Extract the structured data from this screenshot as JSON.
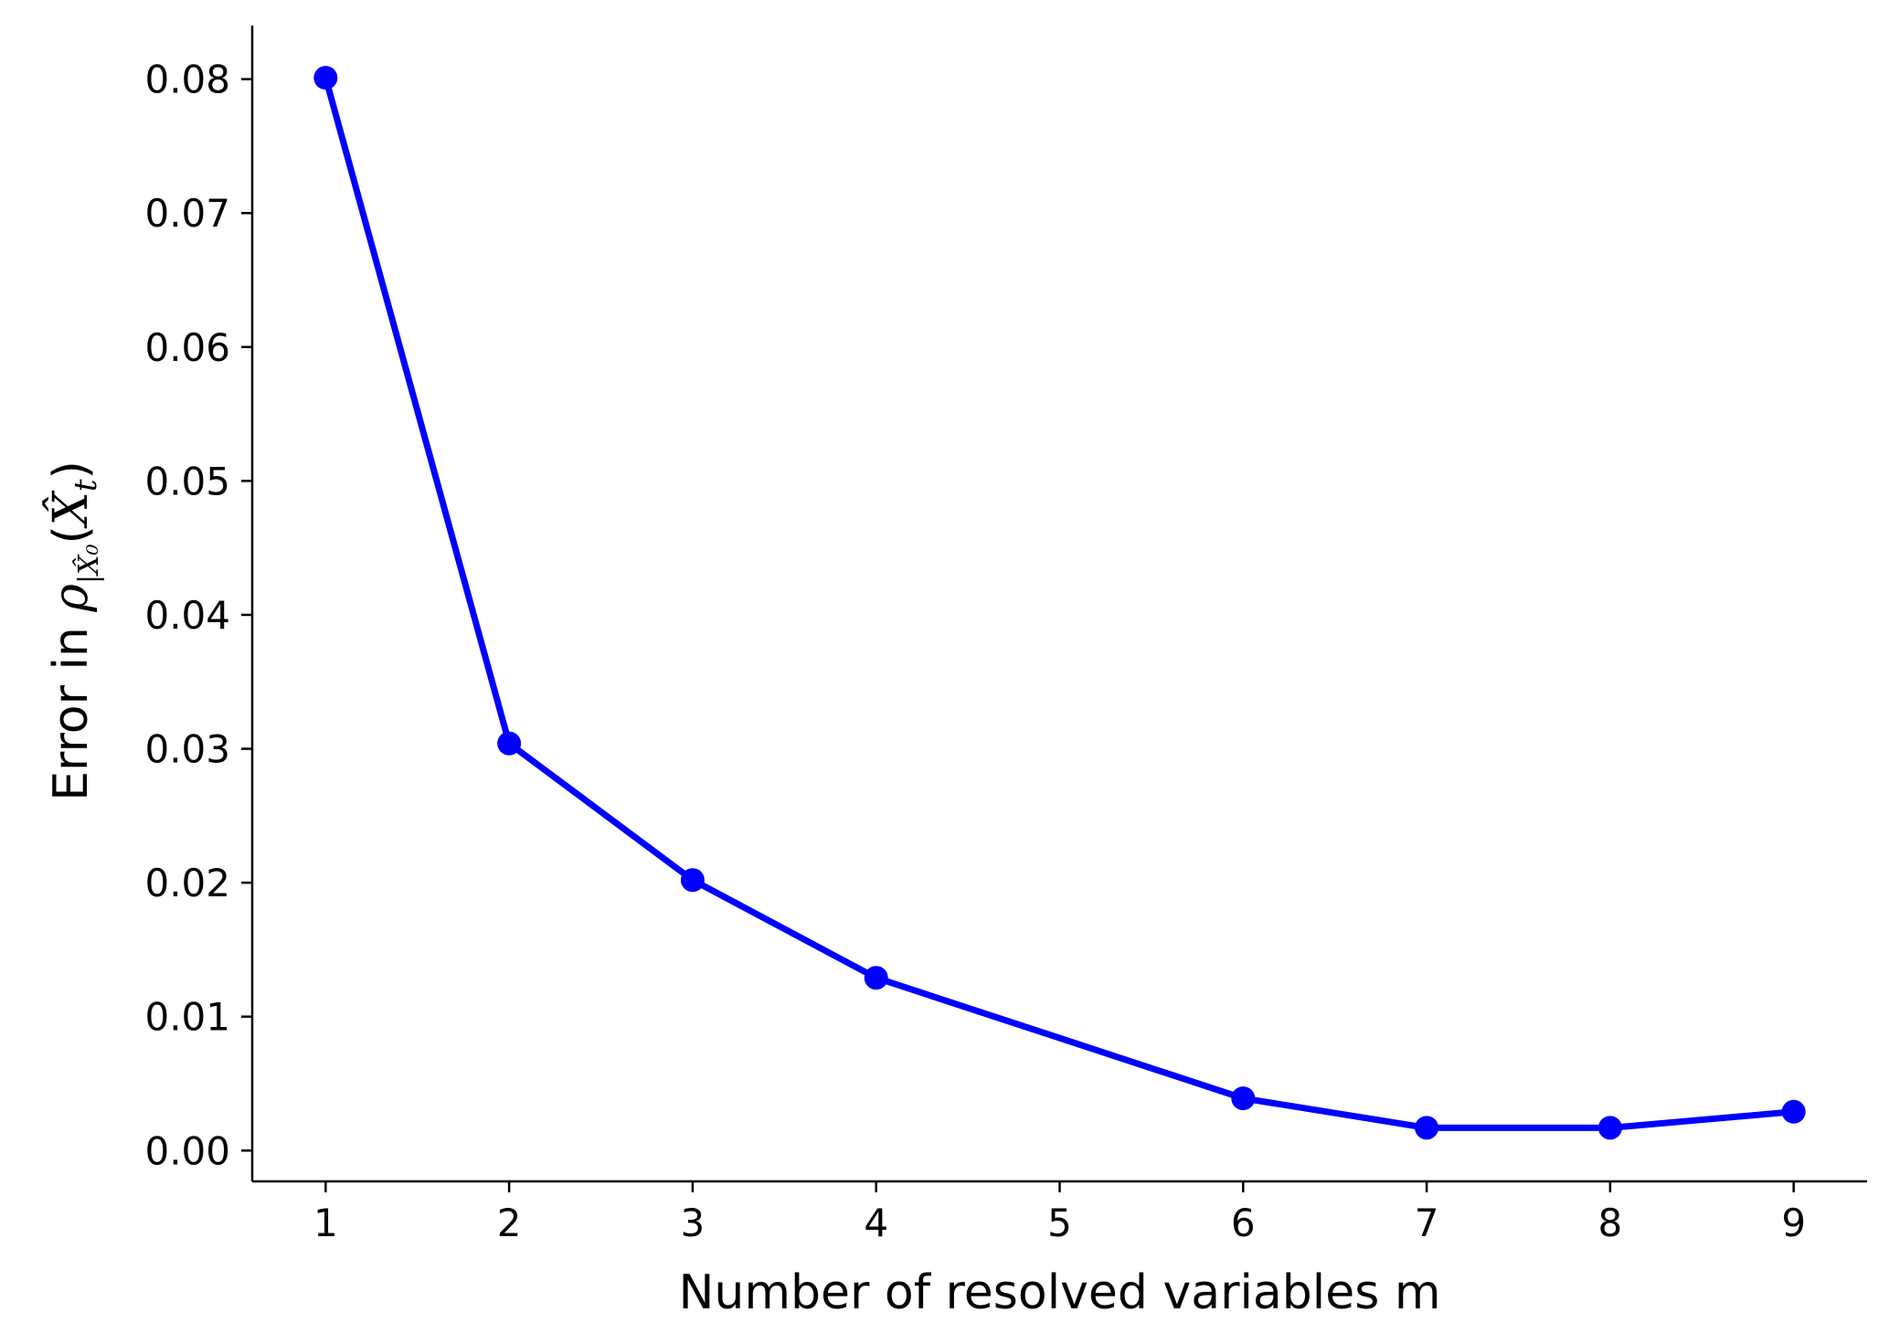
{
  "chart_data": {
    "type": "line",
    "title": "",
    "xlabel": "Number of resolved variables m",
    "ylabel": "Error in ρ|X̂₀(X̂t)",
    "x": [
      1,
      2,
      3,
      4,
      6,
      7,
      8,
      9
    ],
    "series": [
      {
        "values": [
          0.0801,
          0.0304,
          0.0202,
          0.0129,
          0.0039,
          0.0017,
          0.0017,
          0.0029
        ]
      }
    ],
    "x_ticks": [
      1,
      2,
      3,
      4,
      5,
      6,
      7,
      8,
      9
    ],
    "y_ticks": [
      0.0,
      0.01,
      0.02,
      0.03,
      0.04,
      0.05,
      0.06,
      0.07,
      0.08
    ],
    "y_tick_labels": [
      "0.00",
      "0.01",
      "0.02",
      "0.03",
      "0.04",
      "0.05",
      "0.06",
      "0.07",
      "0.08"
    ],
    "xlim": [
      0.6,
      9.4
    ],
    "ylim": [
      -0.0023,
      0.084
    ],
    "grid": false,
    "legend": "none",
    "colors": {
      "line": "#0000ff",
      "marker": "#0000ff",
      "axes": "#000000"
    }
  }
}
